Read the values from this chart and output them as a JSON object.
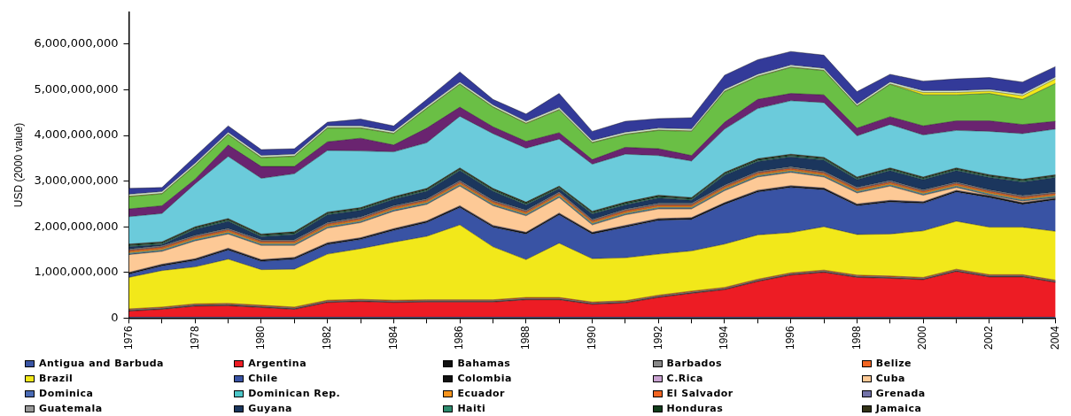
{
  "chart_data": {
    "type": "area",
    "stacked": true,
    "ylabel": "USD (2000 value)",
    "legend": "bottom",
    "grid": false,
    "marker": "none",
    "x": [
      1976,
      1977,
      1978,
      1979,
      1980,
      1981,
      1982,
      1983,
      1984,
      1985,
      1986,
      1987,
      1988,
      1989,
      1990,
      1991,
      1992,
      1993,
      1994,
      1995,
      1996,
      1997,
      1998,
      1999,
      2000,
      2001,
      2002,
      2003,
      2004
    ],
    "xlim": [
      1976,
      2004
    ],
    "xticks": [
      1976,
      {
        "value": 1977,
        "label": null
      },
      1978,
      {
        "value": 1979,
        "label": null
      },
      1980,
      {
        "value": 1981,
        "label": null
      },
      1982,
      {
        "value": 1983,
        "label": null
      },
      1984,
      {
        "value": 1985,
        "label": null
      },
      1986,
      {
        "value": 1987,
        "label": null
      },
      1988,
      {
        "value": 1989,
        "label": null
      },
      1990,
      {
        "value": 1991,
        "label": null
      },
      1992,
      {
        "value": 1993,
        "label": null
      },
      1994,
      {
        "value": 1995,
        "label": null
      },
      1996,
      {
        "value": 1997,
        "label": null
      },
      1998,
      {
        "value": 1999,
        "label": null
      },
      2000,
      {
        "value": 2001,
        "label": null
      },
      2002,
      {
        "value": 2003,
        "label": null
      },
      2004
    ],
    "ylim": [
      0,
      6700000000
    ],
    "yticks": [
      {
        "value": 0,
        "label": "0"
      },
      {
        "value": 1000000000,
        "label": "1,000,000,000"
      },
      {
        "value": 2000000000,
        "label": "2,000,000,000"
      },
      {
        "value": 3000000000,
        "label": "3,000,000,000"
      },
      {
        "value": 4000000000,
        "label": "4,000,000,000"
      },
      {
        "value": 5000000000,
        "label": "5,000,000,000"
      },
      {
        "value": 6000000000,
        "label": "6,000,000,000"
      }
    ],
    "series": [
      {
        "name": "Antigua and Barbuda",
        "color": "#3a55a4",
        "values": [
          20000000.0,
          20000000.0,
          20000000.0,
          20000000.0,
          20000000.0,
          20000000.0,
          20000000.0,
          20000000.0,
          20000000.0,
          20000000.0,
          20000000.0,
          20000000.0,
          20000000.0,
          20000000.0,
          20000000.0,
          20000000.0,
          20000000.0,
          20000000.0,
          20000000.0,
          20000000.0,
          20000000.0,
          20000000.0,
          20000000.0,
          20000000.0,
          20000000.0,
          20000000.0,
          20000000.0,
          20000000.0,
          20000000.0
        ]
      },
      {
        "name": "Argentina",
        "color": "#ed1c24",
        "values": [
          130000000.0,
          170000000.0,
          240000000.0,
          250000000.0,
          210000000.0,
          170000000.0,
          320000000.0,
          340000000.0,
          320000000.0,
          330000000.0,
          330000000.0,
          330000000.0,
          380000000.0,
          380000000.0,
          280000000.0,
          310000000.0,
          430000000.0,
          520000000.0,
          600000000.0,
          780000000.0,
          920000000.0,
          980000000.0,
          870000000.0,
          850000000.0,
          820000000.0,
          1000000000.0,
          880000000.0,
          880000000.0,
          760000000.0
        ]
      },
      {
        "name": "Bahamas",
        "color": "#111111",
        "values": [
          10000000.0,
          10000000.0,
          10000000.0,
          10000000.0,
          10000000.0,
          10000000.0,
          10000000.0,
          10000000.0,
          10000000.0,
          10000000.0,
          10000000.0,
          10000000.0,
          10000000.0,
          10000000.0,
          10000000.0,
          10000000.0,
          10000000.0,
          10000000.0,
          10000000.0,
          10000000.0,
          10000000.0,
          10000000.0,
          10000000.0,
          10000000.0,
          10000000.0,
          10000000.0,
          10000000.0,
          10000000.0,
          10000000.0
        ]
      },
      {
        "name": "Barbados",
        "color": "#888888",
        "values": [
          20000000.0,
          20000000.0,
          20000000.0,
          20000000.0,
          20000000.0,
          20000000.0,
          20000000.0,
          20000000.0,
          20000000.0,
          20000000.0,
          20000000.0,
          20000000.0,
          20000000.0,
          20000000.0,
          20000000.0,
          20000000.0,
          20000000.0,
          20000000.0,
          20000000.0,
          20000000.0,
          20000000.0,
          20000000.0,
          20000000.0,
          20000000.0,
          20000000.0,
          20000000.0,
          20000000.0,
          20000000.0,
          20000000.0
        ]
      },
      {
        "name": "Belize",
        "color": "#f26522",
        "values": [
          20000000.0,
          20000000.0,
          20000000.0,
          20000000.0,
          20000000.0,
          20000000.0,
          20000000.0,
          20000000.0,
          20000000.0,
          20000000.0,
          20000000.0,
          20000000.0,
          20000000.0,
          20000000.0,
          20000000.0,
          20000000.0,
          20000000.0,
          20000000.0,
          20000000.0,
          20000000.0,
          20000000.0,
          20000000.0,
          20000000.0,
          20000000.0,
          20000000.0,
          20000000.0,
          20000000.0,
          20000000.0,
          20000000.0
        ]
      },
      {
        "name": "Brazil",
        "color": "#f2e81a",
        "values": [
          690000000.0,
          800000000.0,
          810000000.0,
          970000000.0,
          780000000.0,
          830000000.0,
          1010000000.0,
          1110000000.0,
          1270000000.0,
          1390000000.0,
          1640000000.0,
          1160000000.0,
          830000000.0,
          1190000000.0,
          950000000.0,
          940000000.0,
          900000000.0,
          880000000.0,
          950000000.0,
          970000000.0,
          880000000.0,
          950000000.0,
          890000000.0,
          920000000.0,
          1020000000.0,
          1050000000.0,
          1040000000.0,
          1040000000.0,
          1070000000.0
        ]
      },
      {
        "name": "Chile",
        "color": "#3953a4",
        "values": [
          70000000.0,
          100000000.0,
          140000000.0,
          200000000.0,
          180000000.0,
          220000000.0,
          210000000.0,
          200000000.0,
          260000000.0,
          300000000.0,
          380000000.0,
          430000000.0,
          560000000.0,
          620000000.0,
          540000000.0,
          670000000.0,
          740000000.0,
          690000000.0,
          870000000.0,
          940000000.0,
          990000000.0,
          810000000.0,
          630000000.0,
          700000000.0,
          600000000.0,
          640000000.0,
          650000000.0,
          500000000.0,
          690000000.0
        ]
      },
      {
        "name": "Colombia",
        "color": "#111111",
        "values": [
          30000000.0,
          30000000.0,
          30000000.0,
          30000000.0,
          30000000.0,
          30000000.0,
          30000000.0,
          30000000.0,
          30000000.0,
          30000000.0,
          30000000.0,
          30000000.0,
          30000000.0,
          30000000.0,
          30000000.0,
          30000000.0,
          30000000.0,
          30000000.0,
          30000000.0,
          30000000.0,
          30000000.0,
          30000000.0,
          30000000.0,
          30000000.0,
          30000000.0,
          30000000.0,
          30000000.0,
          30000000.0,
          30000000.0
        ]
      },
      {
        "name": "C.Rica",
        "color": "#c8a2d0",
        "values": [
          10000000.0,
          10000000.0,
          10000000.0,
          10000000.0,
          10000000.0,
          10000000.0,
          10000000.0,
          10000000.0,
          10000000.0,
          10000000.0,
          10000000.0,
          10000000.0,
          10000000.0,
          10000000.0,
          10000000.0,
          10000000.0,
          10000000.0,
          10000000.0,
          10000000.0,
          10000000.0,
          10000000.0,
          10000000.0,
          10000000.0,
          10000000.0,
          10000000.0,
          10000000.0,
          10000000.0,
          10000000.0,
          10000000.0
        ]
      },
      {
        "name": "Cuba",
        "color": "#fdc996",
        "values": [
          390000000.0,
          280000000.0,
          390000000.0,
          310000000.0,
          310000000.0,
          260000000.0,
          320000000.0,
          330000000.0,
          380000000.0,
          360000000.0,
          430000000.0,
          430000000.0,
          360000000.0,
          340000000.0,
          160000000.0,
          230000000.0,
          210000000.0,
          190000000.0,
          260000000.0,
          290000000.0,
          290000000.0,
          240000000.0,
          240000000.0,
          310000000.0,
          140000000.0,
          60000000.0,
          10000000.0,
          30000000.0,
          10000000.0
        ]
      },
      {
        "name": "Dominica",
        "color": "#4a6bb5",
        "values": [
          10000000.0,
          10000000.0,
          10000000.0,
          10000000.0,
          10000000.0,
          10000000.0,
          10000000.0,
          10000000.0,
          10000000.0,
          10000000.0,
          10000000.0,
          10000000.0,
          10000000.0,
          10000000.0,
          10000000.0,
          10000000.0,
          10000000.0,
          10000000.0,
          10000000.0,
          10000000.0,
          10000000.0,
          10000000.0,
          10000000.0,
          10000000.0,
          10000000.0,
          10000000.0,
          10000000.0,
          10000000.0,
          10000000.0
        ]
      },
      {
        "name": "Dominican Rep.",
        "color": "#4cc6c8",
        "values": [
          20000000.0,
          20000000.0,
          20000000.0,
          20000000.0,
          20000000.0,
          20000000.0,
          20000000.0,
          20000000.0,
          20000000.0,
          20000000.0,
          20000000.0,
          20000000.0,
          20000000.0,
          20000000.0,
          20000000.0,
          20000000.0,
          20000000.0,
          20000000.0,
          20000000.0,
          20000000.0,
          20000000.0,
          20000000.0,
          20000000.0,
          20000000.0,
          20000000.0,
          20000000.0,
          20000000.0,
          20000000.0,
          20000000.0
        ]
      },
      {
        "name": "Ecuador",
        "color": "#f7941d",
        "values": [
          30000000.0,
          30000000.0,
          30000000.0,
          30000000.0,
          30000000.0,
          30000000.0,
          30000000.0,
          30000000.0,
          30000000.0,
          30000000.0,
          30000000.0,
          30000000.0,
          30000000.0,
          30000000.0,
          30000000.0,
          30000000.0,
          30000000.0,
          30000000.0,
          30000000.0,
          30000000.0,
          30000000.0,
          30000000.0,
          30000000.0,
          30000000.0,
          30000000.0,
          30000000.0,
          30000000.0,
          30000000.0,
          30000000.0
        ]
      },
      {
        "name": "El Salvador",
        "color": "#f26522",
        "values": [
          30000000.0,
          30000000.0,
          30000000.0,
          30000000.0,
          30000000.0,
          30000000.0,
          30000000.0,
          30000000.0,
          30000000.0,
          30000000.0,
          30000000.0,
          30000000.0,
          30000000.0,
          30000000.0,
          30000000.0,
          30000000.0,
          30000000.0,
          30000000.0,
          30000000.0,
          30000000.0,
          30000000.0,
          30000000.0,
          30000000.0,
          30000000.0,
          30000000.0,
          30000000.0,
          30000000.0,
          30000000.0,
          30000000.0
        ]
      },
      {
        "name": "Grenada",
        "color": "#7272a8",
        "values": [
          10000000.0,
          10000000.0,
          10000000.0,
          10000000.0,
          10000000.0,
          10000000.0,
          10000000.0,
          10000000.0,
          10000000.0,
          10000000.0,
          10000000.0,
          10000000.0,
          10000000.0,
          10000000.0,
          10000000.0,
          10000000.0,
          10000000.0,
          10000000.0,
          10000000.0,
          10000000.0,
          10000000.0,
          10000000.0,
          10000000.0,
          10000000.0,
          10000000.0,
          10000000.0,
          10000000.0,
          10000000.0,
          10000000.0
        ]
      },
      {
        "name": "Guatemala",
        "color": "#999999",
        "values": [
          20000000.0,
          20000000.0,
          20000000.0,
          20000000.0,
          20000000.0,
          20000000.0,
          20000000.0,
          20000000.0,
          20000000.0,
          20000000.0,
          20000000.0,
          20000000.0,
          20000000.0,
          20000000.0,
          20000000.0,
          20000000.0,
          20000000.0,
          20000000.0,
          20000000.0,
          20000000.0,
          20000000.0,
          20000000.0,
          20000000.0,
          20000000.0,
          20000000.0,
          20000000.0,
          20000000.0,
          20000000.0,
          20000000.0
        ]
      },
      {
        "name": "Guyana",
        "color": "#1b365d",
        "values": [
          50000000.0,
          30000000.0,
          130000000.0,
          160000000.0,
          70000000.0,
          120000000.0,
          170000000.0,
          150000000.0,
          140000000.0,
          170000000.0,
          220000000.0,
          200000000.0,
          120000000.0,
          70000000.0,
          120000000.0,
          100000000.0,
          120000000.0,
          70000000.0,
          220000000.0,
          220000000.0,
          220000000.0,
          250000000.0,
          170000000.0,
          220000000.0,
          220000000.0,
          250000000.0,
          270000000.0,
          300000000.0,
          320000000.0
        ]
      },
      {
        "name": "Haiti",
        "color": "#2e8b6e",
        "values": [
          20000000.0,
          20000000.0,
          20000000.0,
          20000000.0,
          20000000.0,
          20000000.0,
          20000000.0,
          20000000.0,
          20000000.0,
          20000000.0,
          20000000.0,
          20000000.0,
          20000000.0,
          20000000.0,
          20000000.0,
          20000000.0,
          20000000.0,
          20000000.0,
          20000000.0,
          20000000.0,
          20000000.0,
          20000000.0,
          20000000.0,
          20000000.0,
          20000000.0,
          20000000.0,
          20000000.0,
          20000000.0,
          20000000.0
        ]
      },
      {
        "name": "Honduras",
        "color": "#123d1c",
        "values": [
          20000000.0,
          20000000.0,
          20000000.0,
          20000000.0,
          20000000.0,
          20000000.0,
          20000000.0,
          20000000.0,
          20000000.0,
          20000000.0,
          20000000.0,
          20000000.0,
          20000000.0,
          20000000.0,
          20000000.0,
          20000000.0,
          20000000.0,
          20000000.0,
          20000000.0,
          20000000.0,
          20000000.0,
          20000000.0,
          20000000.0,
          20000000.0,
          20000000.0,
          20000000.0,
          20000000.0,
          20000000.0,
          20000000.0
        ]
      },
      {
        "name": "Jamaica",
        "color": "#333318",
        "values": [
          20000000.0,
          20000000.0,
          20000000.0,
          20000000.0,
          20000000.0,
          20000000.0,
          20000000.0,
          20000000.0,
          20000000.0,
          20000000.0,
          20000000.0,
          20000000.0,
          20000000.0,
          20000000.0,
          20000000.0,
          20000000.0,
          20000000.0,
          20000000.0,
          20000000.0,
          20000000.0,
          20000000.0,
          20000000.0,
          20000000.0,
          20000000.0,
          20000000.0,
          20000000.0,
          20000000.0,
          20000000.0,
          20000000.0
        ]
      },
      {
        "color": "#6bcbdb",
        "values": [
          600000000.0,
          620000000.0,
          940000000.0,
          1360000000.0,
          1220000000.0,
          1270000000.0,
          1350000000.0,
          1240000000.0,
          980000000.0,
          1000000000.0,
          1130000000.0,
          1200000000.0,
          1180000000.0,
          1030000000.0,
          1030000000.0,
          1050000000.0,
          870000000.0,
          800000000.0,
          950000000.0,
          1100000000.0,
          1170000000.0,
          1200000000.0,
          900000000.0,
          950000000.0,
          920000000.0,
          820000000.0,
          950000000.0,
          1000000000.0,
          1000000000.0
        ]
      },
      {
        "color": "#6a2470",
        "values": [
          170000000.0,
          170000000.0,
          100000000.0,
          250000000.0,
          260000000.0,
          160000000.0,
          190000000.0,
          280000000.0,
          150000000.0,
          320000000.0,
          200000000.0,
          150000000.0,
          150000000.0,
          140000000.0,
          100000000.0,
          150000000.0,
          150000000.0,
          120000000.0,
          150000000.0,
          200000000.0,
          160000000.0,
          170000000.0,
          170000000.0,
          170000000.0,
          200000000.0,
          210000000.0,
          230000000.0,
          200000000.0,
          170000000.0
        ]
      },
      {
        "color": "#6abf45",
        "values": [
          270000000.0,
          260000000.0,
          300000000.0,
          230000000.0,
          190000000.0,
          220000000.0,
          300000000.0,
          220000000.0,
          250000000.0,
          430000000.0,
          500000000.0,
          430000000.0,
          390000000.0,
          500000000.0,
          370000000.0,
          280000000.0,
          400000000.0,
          530000000.0,
          670000000.0,
          500000000.0,
          570000000.0,
          530000000.0,
          480000000.0,
          710000000.0,
          680000000.0,
          570000000.0,
          600000000.0,
          550000000.0,
          830000000.0
        ]
      },
      {
        "color": "#f2e81a",
        "values": [
          10000000.0,
          10000000.0,
          10000000.0,
          10000000.0,
          10000000.0,
          10000000.0,
          10000000.0,
          10000000.0,
          10000000.0,
          10000000.0,
          10000000.0,
          10000000.0,
          10000000.0,
          10000000.0,
          10000000.0,
          10000000.0,
          10000000.0,
          10000000.0,
          10000000.0,
          10000000.0,
          10000000.0,
          10000000.0,
          10000000.0,
          10000000.0,
          50000000.0,
          50000000.0,
          50000000.0,
          80000000.0,
          100000000.0
        ]
      },
      {
        "color": "#d4ecd4",
        "values": [
          40000000.0,
          40000000.0,
          40000000.0,
          40000000.0,
          40000000.0,
          40000000.0,
          40000000.0,
          40000000.0,
          40000000.0,
          40000000.0,
          40000000.0,
          40000000.0,
          40000000.0,
          40000000.0,
          40000000.0,
          40000000.0,
          40000000.0,
          40000000.0,
          40000000.0,
          40000000.0,
          40000000.0,
          40000000.0,
          40000000.0,
          40000000.0,
          40000000.0,
          40000000.0,
          40000000.0,
          40000000.0,
          40000000.0
        ]
      },
      {
        "color": "#333a99",
        "values": [
          130000000.0,
          90000000.0,
          150000000.0,
          140000000.0,
          130000000.0,
          120000000.0,
          80000000.0,
          150000000.0,
          120000000.0,
          150000000.0,
          220000000.0,
          120000000.0,
          160000000.0,
          310000000.0,
          200000000.0,
          240000000.0,
          210000000.0,
          250000000.0,
          310000000.0,
          320000000.0,
          300000000.0,
          290000000.0,
          270000000.0,
          170000000.0,
          210000000.0,
          260000000.0,
          260000000.0,
          260000000.0,
          230000000.0
        ]
      }
    ]
  }
}
